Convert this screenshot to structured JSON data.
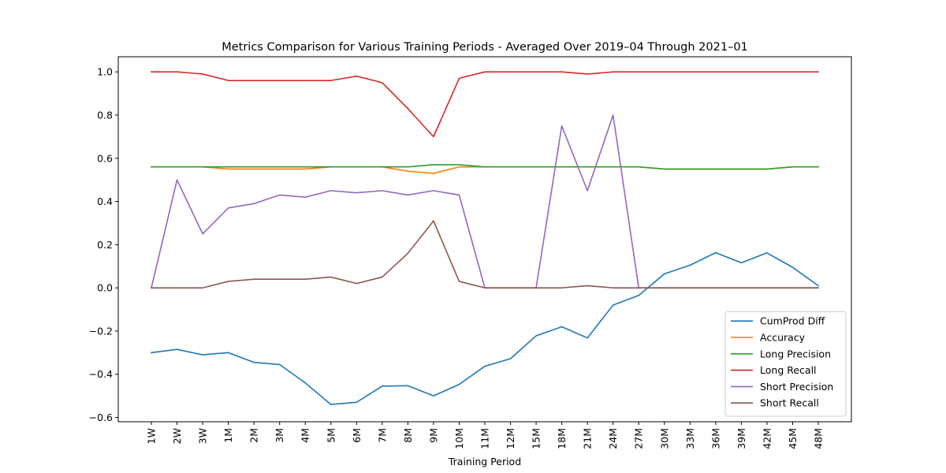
{
  "chart_data": {
    "type": "line",
    "title": "Metrics Comparison for Various Training Periods - Averaged Over 2019–04 Through 2021–01",
    "xlabel": "Training Period",
    "ylabel": "",
    "categories": [
      "1W",
      "2W",
      "3W",
      "1M",
      "2M",
      "3M",
      "4M",
      "5M",
      "6M",
      "7M",
      "8M",
      "9M",
      "10M",
      "11M",
      "12M",
      "15M",
      "18M",
      "21M",
      "24M",
      "27M",
      "30M",
      "33M",
      "36M",
      "39M",
      "42M",
      "45M",
      "48M"
    ],
    "ylim": [
      -0.62,
      1.07
    ],
    "yticks": [
      -0.6,
      -0.4,
      -0.2,
      0.0,
      0.2,
      0.4,
      0.6,
      0.8,
      1.0
    ],
    "ytick_labels": [
      "−0.6",
      "−0.4",
      "−0.2",
      "0.0",
      "0.2",
      "0.4",
      "0.6",
      "0.8",
      "1.0"
    ],
    "grid": false,
    "legend_position": "bottom-right",
    "series": [
      {
        "name": "CumProd Diff",
        "color": "#1f77b4",
        "values": [
          -0.3,
          -0.285,
          -0.31,
          -0.3,
          -0.345,
          -0.355,
          -0.44,
          -0.54,
          -0.53,
          -0.455,
          -0.453,
          -0.5,
          -0.447,
          -0.363,
          -0.328,
          -0.222,
          -0.18,
          -0.232,
          -0.08,
          -0.035,
          0.065,
          0.105,
          0.163,
          0.116,
          0.162,
          0.095,
          0.01
        ]
      },
      {
        "name": "Accuracy",
        "color": "#ff7f0e",
        "values": [
          0.56,
          0.56,
          0.56,
          0.55,
          0.55,
          0.55,
          0.55,
          0.56,
          0.56,
          0.56,
          0.54,
          0.53,
          0.56,
          0.56,
          0.56,
          0.56,
          0.56,
          0.56,
          0.56,
          0.56,
          0.55,
          0.55,
          0.55,
          0.55,
          0.55,
          0.56,
          0.56
        ]
      },
      {
        "name": "Long Precision",
        "color": "#2ca02c",
        "values": [
          0.56,
          0.56,
          0.56,
          0.56,
          0.56,
          0.56,
          0.56,
          0.56,
          0.56,
          0.56,
          0.56,
          0.57,
          0.57,
          0.56,
          0.56,
          0.56,
          0.56,
          0.56,
          0.56,
          0.56,
          0.55,
          0.55,
          0.55,
          0.55,
          0.55,
          0.56,
          0.56
        ]
      },
      {
        "name": "Long Recall",
        "color": "#d62728",
        "values": [
          1.0,
          1.0,
          0.99,
          0.96,
          0.96,
          0.96,
          0.96,
          0.96,
          0.98,
          0.95,
          0.83,
          0.7,
          0.97,
          1.0,
          1.0,
          1.0,
          1.0,
          0.99,
          1.0,
          1.0,
          1.0,
          1.0,
          1.0,
          1.0,
          1.0,
          1.0,
          1.0
        ]
      },
      {
        "name": "Short Precision",
        "color": "#9467bd",
        "values": [
          0.0,
          0.5,
          0.25,
          0.37,
          0.39,
          0.43,
          0.42,
          0.45,
          0.44,
          0.45,
          0.43,
          0.45,
          0.43,
          0.0,
          0.0,
          0.0,
          0.75,
          0.45,
          0.8,
          0.0,
          0.0,
          0.0,
          0.0,
          0.0,
          0.0,
          0.0,
          0.0
        ]
      },
      {
        "name": "Short Recall",
        "color": "#8c564b",
        "values": [
          0.0,
          0.0,
          0.0,
          0.03,
          0.04,
          0.04,
          0.04,
          0.05,
          0.02,
          0.05,
          0.16,
          0.31,
          0.03,
          0.0,
          0.0,
          0.0,
          0.0,
          0.01,
          0.0,
          0.0,
          0.0,
          0.0,
          0.0,
          0.0,
          0.0,
          0.0,
          0.0
        ]
      }
    ]
  }
}
